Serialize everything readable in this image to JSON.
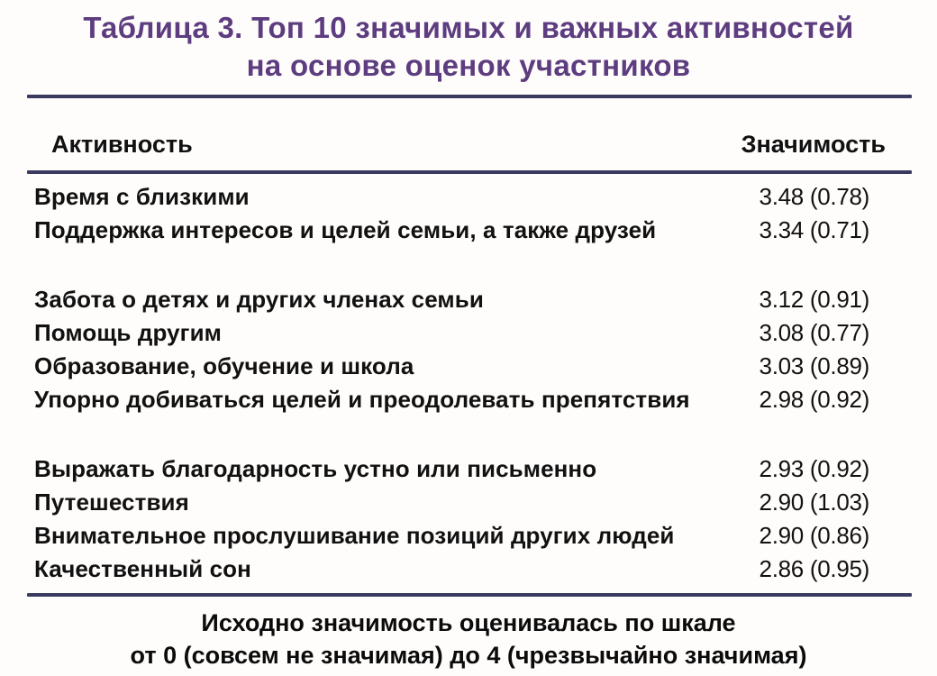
{
  "title": {
    "line1": "Таблица 3. Топ 10 значимых и важных активностей",
    "line2": "на основе оценок участников"
  },
  "table": {
    "headers": {
      "activity": "Активность",
      "significance": "Значимость"
    },
    "rows": [
      {
        "activity": "Время с близкими",
        "value": "3.48 (0.78)"
      },
      {
        "activity": "Поддержка интересов и целей семьи, а также друзей",
        "value": "3.34 (0.71)"
      },
      {
        "activity": "Забота о детях и других членах семьи",
        "value": "3.12 (0.91)"
      },
      {
        "activity": "Помощь другим",
        "value": "3.08 (0.77)"
      },
      {
        "activity": "Образование, обучение и школа",
        "value": "3.03 (0.89)"
      },
      {
        "activity": "Упорно добиваться целей и преодолевать препятствия",
        "value": "2.98 (0.92)"
      },
      {
        "activity": "Выражать благодарность устно или письменно",
        "value": "2.93 (0.92)"
      },
      {
        "activity": "Путешествия",
        "value": "2.90 (1.03)"
      },
      {
        "activity": "Внимательное прослушивание позиций других людей",
        "value": "2.90 (0.86)"
      },
      {
        "activity": "Качественный сон",
        "value": "2.86 (0.95)"
      }
    ]
  },
  "footer": {
    "line1": "Исходно значимость оценивалась по шкале",
    "line2": "от 0 (совсем не значимая) до 4 (чрезвычайно значимая)"
  },
  "colors": {
    "title_purple": "#5d3c80",
    "rule_navy": "#3a3a5e",
    "text_black": "#111111",
    "background": "#fffdfb"
  }
}
